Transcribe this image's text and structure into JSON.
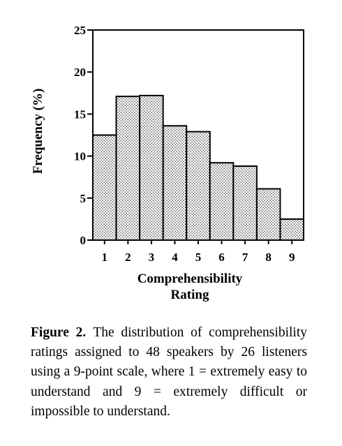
{
  "chart_data": {
    "type": "bar",
    "categories": [
      "1",
      "2",
      "3",
      "4",
      "5",
      "6",
      "7",
      "8",
      "9"
    ],
    "values": [
      12.5,
      17.1,
      17.2,
      13.6,
      12.9,
      9.2,
      8.8,
      6.1,
      2.5
    ],
    "xlabel_lines": [
      "Comprehensibility",
      "Rating"
    ],
    "ylabel": "Frequency (%)",
    "ylim": [
      0,
      25
    ],
    "yticks": [
      0,
      5,
      10,
      15,
      20,
      25
    ],
    "grid": false,
    "legend": "none",
    "bar_fill": "dotted stipple",
    "bar_color": "#ffffff",
    "dot_color": "#000000"
  },
  "caption": {
    "label": "Figure 2.",
    "text": "The distribution of comprehensibility ratings assigned to 48 speakers by 26 listeners using a 9-point scale, where 1 = extremely easy to understand and 9 = extremely difficult or impossible to understand."
  }
}
